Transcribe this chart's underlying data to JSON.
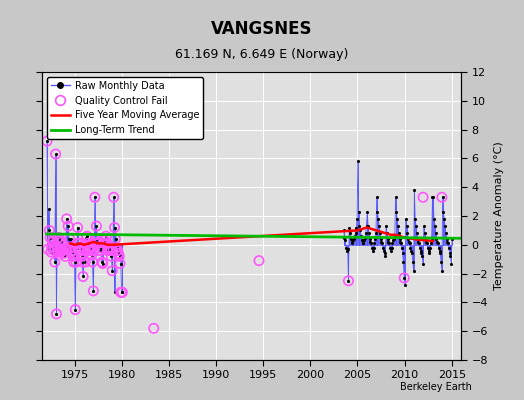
{
  "title": "VANGSNES",
  "subtitle": "61.169 N, 6.649 E (Norway)",
  "ylabel": "Temperature Anomaly (°C)",
  "xlabel_credit": "Berkeley Earth",
  "xlim": [
    1971.5,
    2016
  ],
  "ylim": [
    -8,
    12
  ],
  "yticks": [
    -8,
    -6,
    -4,
    -2,
    0,
    2,
    4,
    6,
    8,
    10,
    12
  ],
  "xticks": [
    1975,
    1980,
    1985,
    1990,
    1995,
    2000,
    2005,
    2010,
    2015
  ],
  "bg_color": "#c8c8c8",
  "plot_bg_color": "#e0e0e0",
  "grid_color": "#ffffff",
  "raw_data_color": "#5555ff",
  "raw_dot_color": "#000000",
  "qc_fail_color": "#ff55ff",
  "moving_avg_color": "#ff0000",
  "trend_color": "#00bb00",
  "raw_monthly_x": [
    1972.04,
    1972.12,
    1972.21,
    1972.29,
    1972.37,
    1972.46,
    1972.54,
    1972.62,
    1972.71,
    1972.79,
    1972.87,
    1972.96,
    1973.04,
    1973.12,
    1973.21,
    1973.29,
    1973.37,
    1973.46,
    1973.54,
    1973.62,
    1973.71,
    1973.79,
    1973.87,
    1973.96,
    1974.04,
    1974.12,
    1974.21,
    1974.29,
    1974.37,
    1974.46,
    1974.54,
    1974.62,
    1974.71,
    1974.79,
    1974.87,
    1974.96,
    1975.04,
    1975.12,
    1975.21,
    1975.29,
    1975.37,
    1975.46,
    1975.54,
    1975.62,
    1975.71,
    1975.79,
    1975.87,
    1975.96,
    1976.04,
    1976.12,
    1976.21,
    1976.29,
    1976.37,
    1976.46,
    1976.54,
    1976.62,
    1976.71,
    1976.79,
    1976.87,
    1976.96,
    1977.04,
    1977.12,
    1977.21,
    1977.29,
    1977.37,
    1977.46,
    1977.54,
    1977.62,
    1977.71,
    1977.79,
    1977.87,
    1977.96,
    1978.04,
    1978.12,
    1978.21,
    1978.29,
    1978.37,
    1978.46,
    1978.54,
    1978.62,
    1978.71,
    1978.79,
    1978.87,
    1978.96,
    1979.04,
    1979.12,
    1979.21,
    1979.29,
    1979.37,
    1979.46,
    1979.54,
    1979.62,
    1979.71,
    1979.79,
    1979.87,
    1979.96,
    1980.04,
    2003.54,
    2003.62,
    2003.71,
    2003.79,
    2003.87,
    2003.96,
    2004.04,
    2004.12,
    2004.21,
    2004.29,
    2004.37,
    2004.46,
    2004.54,
    2004.62,
    2004.71,
    2004.79,
    2004.87,
    2004.96,
    2005.04,
    2005.12,
    2005.21,
    2005.29,
    2005.37,
    2005.46,
    2005.54,
    2005.62,
    2005.71,
    2005.79,
    2005.87,
    2005.96,
    2006.04,
    2006.12,
    2006.21,
    2006.29,
    2006.37,
    2006.46,
    2006.54,
    2006.62,
    2006.71,
    2006.79,
    2006.87,
    2006.96,
    2007.04,
    2007.12,
    2007.21,
    2007.29,
    2007.37,
    2007.46,
    2007.54,
    2007.62,
    2007.71,
    2007.79,
    2007.87,
    2007.96,
    2008.04,
    2008.12,
    2008.21,
    2008.29,
    2008.37,
    2008.46,
    2008.54,
    2008.62,
    2008.71,
    2008.79,
    2008.87,
    2008.96,
    2009.04,
    2009.12,
    2009.21,
    2009.29,
    2009.37,
    2009.46,
    2009.54,
    2009.62,
    2009.71,
    2009.79,
    2009.87,
    2009.96,
    2010.04,
    2010.12,
    2010.21,
    2010.29,
    2010.37,
    2010.46,
    2010.54,
    2010.62,
    2010.71,
    2010.79,
    2010.87,
    2010.96,
    2011.04,
    2011.12,
    2011.21,
    2011.29,
    2011.37,
    2011.46,
    2011.54,
    2011.62,
    2011.71,
    2011.79,
    2011.87,
    2011.96,
    2012.04,
    2012.12,
    2012.21,
    2012.29,
    2012.37,
    2012.46,
    2012.54,
    2012.62,
    2012.71,
    2012.79,
    2012.87,
    2012.96,
    2013.04,
    2013.12,
    2013.21,
    2013.29,
    2013.37,
    2013.46,
    2013.54,
    2013.62,
    2013.71,
    2013.79,
    2013.87,
    2013.96,
    2014.04,
    2014.12,
    2014.21,
    2014.29,
    2014.37,
    2014.46,
    2014.54,
    2014.62,
    2014.71,
    2014.79,
    2014.87,
    2014.96,
    2015.04
  ],
  "raw_monthly_y": [
    7.2,
    -0.3,
    2.5,
    1.0,
    0.5,
    -0.5,
    -0.2,
    0.2,
    0.3,
    -0.4,
    -1.2,
    6.3,
    -4.8,
    0.4,
    -0.5,
    0.5,
    0.3,
    -0.3,
    -0.5,
    0.2,
    -0.4,
    -0.6,
    -0.3,
    -0.8,
    -0.3,
    1.8,
    -0.2,
    1.3,
    0.4,
    -0.3,
    0.4,
    -0.2,
    -0.5,
    -0.4,
    -0.8,
    -1.2,
    -4.5,
    -1.2,
    0.1,
    1.2,
    -0.2,
    0.1,
    -0.2,
    -0.4,
    -0.8,
    -1.2,
    -2.2,
    -0.3,
    -0.4,
    -1.2,
    0.5,
    0.6,
    0.1,
    -0.4,
    -0.2,
    -0.2,
    -0.4,
    -0.7,
    -1.2,
    -3.2,
    -0.4,
    3.3,
    0.1,
    1.3,
    0.4,
    0.1,
    0.2,
    -0.4,
    -0.4,
    -0.2,
    -1.2,
    -1.3,
    0.4,
    0.3,
    0.1,
    0.6,
    0.1,
    -0.4,
    -0.2,
    -0.2,
    -0.4,
    -0.4,
    -0.8,
    -1.8,
    -0.4,
    3.3,
    -3.3,
    1.2,
    0.4,
    -0.2,
    -0.4,
    -0.4,
    -0.6,
    -0.8,
    -1.3,
    -3.3,
    -3.3,
    1.0,
    0.5,
    0.3,
    -0.2,
    -0.4,
    -0.3,
    -2.5,
    1.2,
    0.8,
    0.4,
    0.2,
    0.1,
    0.3,
    0.4,
    0.6,
    0.8,
    1.2,
    1.8,
    5.8,
    2.3,
    1.3,
    1.0,
    0.6,
    0.3,
    0.1,
    0.1,
    0.3,
    0.5,
    0.8,
    1.3,
    2.3,
    1.3,
    0.8,
    0.4,
    0.2,
    0.1,
    -0.2,
    -0.4,
    -0.2,
    0.1,
    0.4,
    0.8,
    3.3,
    2.3,
    1.8,
    1.3,
    0.8,
    0.4,
    0.2,
    0.1,
    -0.2,
    -0.4,
    -0.6,
    -0.8,
    1.3,
    0.8,
    0.4,
    0.2,
    0.1,
    -0.2,
    -0.4,
    -0.2,
    0.1,
    0.3,
    0.4,
    0.6,
    3.3,
    2.3,
    1.8,
    1.3,
    0.8,
    0.4,
    0.2,
    0.1,
    -0.2,
    -0.6,
    -1.2,
    -2.3,
    -2.8,
    1.8,
    1.3,
    0.8,
    0.4,
    0.2,
    0.1,
    -0.2,
    -0.4,
    -0.6,
    -1.2,
    -1.8,
    3.8,
    1.8,
    1.3,
    0.8,
    0.4,
    0.2,
    0.1,
    -0.2,
    -0.4,
    -0.6,
    -0.8,
    -1.3,
    1.3,
    0.8,
    0.4,
    0.2,
    0.1,
    -0.2,
    -0.4,
    -0.6,
    -0.2,
    0.1,
    0.3,
    3.3,
    3.3,
    1.8,
    1.3,
    0.8,
    0.4,
    0.2,
    0.1,
    -0.2,
    -0.4,
    -0.6,
    -1.2,
    -1.8,
    3.3,
    2.3,
    1.8,
    1.3,
    0.8,
    0.4,
    0.2,
    0.1,
    -0.2,
    -0.6,
    -0.8,
    -1.3,
    0.4
  ],
  "qc_fail_x": [
    1972.04,
    1972.96,
    1973.04,
    1973.96,
    1974.12,
    1974.29,
    1975.04,
    1975.96,
    1976.96,
    1977.12,
    1977.29,
    1978.12,
    1979.12,
    1979.96,
    1980.04,
    1972.12,
    1972.29,
    1972.37,
    1972.46,
    1972.54,
    1972.62,
    1972.71,
    1972.79,
    1972.87,
    1973.12,
    1973.21,
    1973.29,
    1973.37,
    1973.46,
    1973.54,
    1973.62,
    1973.71,
    1973.79,
    1973.87,
    1974.04,
    1974.21,
    1974.37,
    1974.46,
    1974.54,
    1974.62,
    1974.71,
    1974.79,
    1974.87,
    1974.96,
    1975.12,
    1975.21,
    1975.29,
    1975.37,
    1975.46,
    1975.54,
    1975.62,
    1975.71,
    1975.79,
    1975.87,
    1976.04,
    1976.12,
    1976.21,
    1976.29,
    1976.37,
    1976.46,
    1976.54,
    1976.62,
    1976.71,
    1976.79,
    1976.87,
    1977.04,
    1977.21,
    1977.37,
    1977.46,
    1977.54,
    1977.62,
    1977.71,
    1977.79,
    1977.87,
    1977.96,
    1978.04,
    1978.21,
    1978.29,
    1978.37,
    1978.46,
    1978.54,
    1978.62,
    1978.71,
    1978.79,
    1978.87,
    1978.96,
    1979.04,
    1979.21,
    1979.29,
    1979.37,
    1979.46,
    1979.54,
    1979.62,
    1979.71,
    1979.79,
    1979.87,
    1983.37,
    1994.54,
    2004.04,
    2009.96,
    2011.96,
    2013.96
  ],
  "qc_fail_y": [
    7.2,
    6.3,
    -4.8,
    -0.8,
    1.8,
    1.3,
    -4.5,
    -0.3,
    -3.2,
    3.3,
    1.3,
    0.3,
    3.3,
    -3.3,
    -3.3,
    -0.3,
    1.0,
    0.5,
    -0.5,
    -0.2,
    0.2,
    0.3,
    -0.4,
    -1.2,
    0.4,
    -0.5,
    0.5,
    0.3,
    -0.3,
    -0.5,
    0.2,
    -0.4,
    -0.6,
    -0.3,
    -0.3,
    -0.2,
    -0.3,
    0.4,
    -0.2,
    -0.5,
    -0.4,
    -0.8,
    -1.2,
    -0.8,
    -1.2,
    0.1,
    1.2,
    -0.2,
    0.1,
    -0.2,
    -0.4,
    -0.8,
    -1.2,
    -2.2,
    -0.4,
    -1.2,
    0.5,
    0.6,
    0.1,
    -0.4,
    -0.2,
    -0.2,
    -0.4,
    -0.7,
    -1.2,
    -0.4,
    0.1,
    0.4,
    0.1,
    0.2,
    -0.4,
    -0.4,
    -0.2,
    -1.2,
    -1.3,
    0.4,
    0.1,
    0.6,
    0.1,
    -0.4,
    -0.2,
    -0.2,
    -0.4,
    -0.4,
    -0.8,
    -1.8,
    -0.4,
    1.2,
    0.4,
    -0.2,
    -0.4,
    -0.4,
    -0.6,
    -0.8,
    -1.3,
    -3.3,
    -5.8,
    -1.1,
    -2.5,
    -2.3,
    3.3,
    3.3
  ],
  "moving_avg_x": [
    1974.5,
    1975.0,
    1975.5,
    1976.0,
    1976.5,
    1977.0,
    1977.5,
    1978.0,
    1978.5,
    1979.0,
    2005.0,
    2005.5,
    2006.0,
    2006.5,
    2007.0,
    2007.5,
    2008.0,
    2008.5,
    2009.0,
    2009.5,
    2010.0,
    2010.5,
    2011.0,
    2011.5,
    2012.5,
    2013.0
  ],
  "moving_avg_y": [
    0.1,
    0.0,
    0.1,
    0.0,
    0.1,
    0.2,
    0.1,
    0.1,
    0.0,
    0.0,
    1.0,
    1.1,
    1.2,
    1.1,
    1.0,
    0.9,
    0.8,
    0.7,
    0.7,
    0.6,
    0.5,
    0.45,
    0.4,
    0.35,
    0.3,
    0.25
  ],
  "trend_x": [
    1972,
    2016
  ],
  "trend_y": [
    0.75,
    0.45
  ]
}
